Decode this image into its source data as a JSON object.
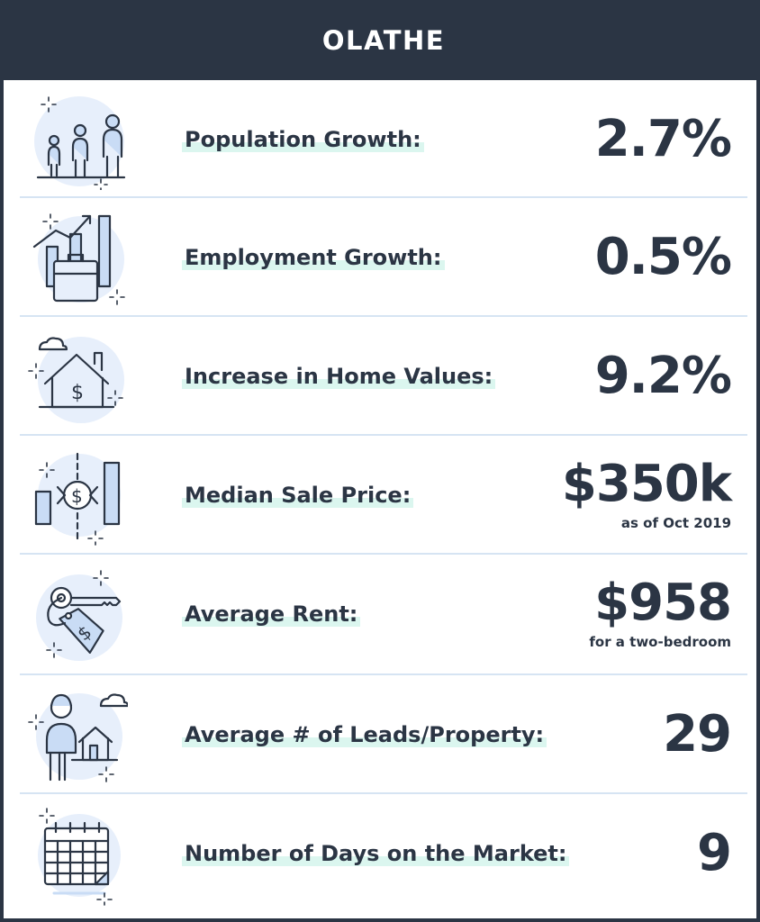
{
  "header": {
    "title": "OLATHE"
  },
  "stats": [
    {
      "label": "Population Growth:",
      "value": "2.7%",
      "sub": "",
      "icon": "population-icon"
    },
    {
      "label": "Employment Growth:",
      "value": "0.5%",
      "sub": "",
      "icon": "employment-icon"
    },
    {
      "label": "Increase in Home Values:",
      "value": "9.2%",
      "sub": "",
      "icon": "home-value-icon"
    },
    {
      "label": "Median Sale Price:",
      "value": "$350k",
      "sub": "as of Oct 2019",
      "icon": "sale-price-icon"
    },
    {
      "label": "Average Rent:",
      "value": "$958",
      "sub": "for a two-bedroom",
      "icon": "rent-key-icon"
    },
    {
      "label": "Average # of Leads/Property:",
      "value": "29",
      "sub": "",
      "icon": "leads-person-icon"
    },
    {
      "label": "Number of Days on the Market:",
      "value": "9",
      "sub": "",
      "icon": "calendar-icon"
    }
  ],
  "colors": {
    "header_bg": "#2b3544",
    "text": "#2b3544",
    "label_highlight": "#dbf6ef",
    "divider": "#d6e4f3",
    "icon_circle": "#e7effb",
    "icon_fill": "#c9dcf5"
  }
}
